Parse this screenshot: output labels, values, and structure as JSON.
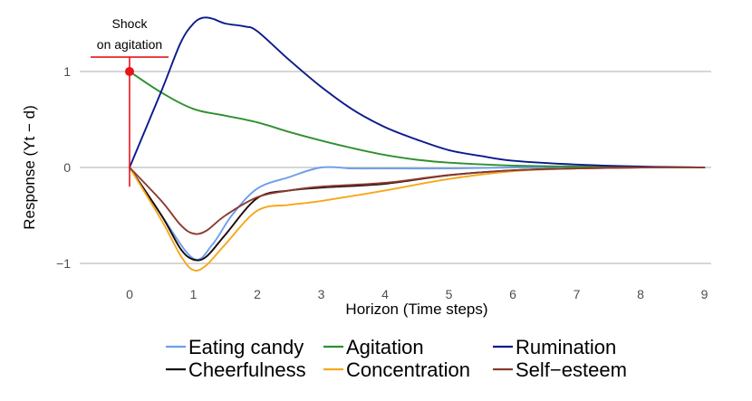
{
  "chart_data": {
    "type": "line",
    "title": "",
    "xlabel": "Horizon (Time steps)",
    "ylabel": "Response (Yt − d)",
    "x_ticks": [
      0,
      1,
      2,
      3,
      4,
      5,
      6,
      7,
      8,
      9
    ],
    "y_ticks": [
      -1,
      0,
      1
    ],
    "y_tick_labels": [
      "−1",
      "0",
      "1"
    ],
    "xlim": [
      -0.75,
      9.2
    ],
    "ylim": [
      -1.2,
      1.6
    ],
    "grid": "horizontal major lines",
    "legend_position": "bottom",
    "annotation": {
      "lines": [
        "Shock",
        "on agitation"
      ],
      "x": 0,
      "y": 1,
      "whisker_low": -0.2,
      "whisker_high": 1.15,
      "color": "#e8141a"
    },
    "series": [
      {
        "name": "Eating candy",
        "color": "#6d9eeb",
        "x": [
          0,
          0.5,
          1,
          1.3,
          1.6,
          2,
          2.5,
          3,
          3.5,
          4,
          5,
          6,
          7,
          8,
          9
        ],
        "values": [
          0,
          -0.5,
          -0.95,
          -0.8,
          -0.5,
          -0.22,
          -0.1,
          0.0,
          -0.01,
          -0.01,
          -0.01,
          0,
          0,
          0,
          0
        ]
      },
      {
        "name": "Agitation",
        "color": "#2f8f2f",
        "x": [
          0,
          0.5,
          1,
          1.5,
          2,
          2.5,
          3,
          3.5,
          4,
          4.5,
          5,
          6,
          7,
          8,
          9
        ],
        "values": [
          1.0,
          0.78,
          0.61,
          0.54,
          0.47,
          0.37,
          0.28,
          0.2,
          0.13,
          0.08,
          0.05,
          0.02,
          0.01,
          0.005,
          0
        ]
      },
      {
        "name": "Rumination",
        "color": "#0a1a8c",
        "x": [
          0,
          0.5,
          0.8,
          1,
          1.15,
          1.3,
          1.5,
          1.8,
          2,
          2.5,
          3,
          3.5,
          4,
          4.5,
          5,
          5.5,
          6,
          7,
          8,
          9
        ],
        "values": [
          0,
          0.8,
          1.3,
          1.5,
          1.56,
          1.55,
          1.5,
          1.47,
          1.42,
          1.12,
          0.84,
          0.6,
          0.42,
          0.29,
          0.18,
          0.12,
          0.07,
          0.03,
          0.01,
          0
        ]
      },
      {
        "name": "Cheerfulness",
        "color": "#1a0a0a",
        "x": [
          0,
          0.5,
          0.8,
          1,
          1.2,
          1.5,
          2,
          2.5,
          3,
          4,
          5,
          6,
          7,
          8,
          9
        ],
        "values": [
          0,
          -0.5,
          -0.85,
          -0.96,
          -0.93,
          -0.7,
          -0.32,
          -0.24,
          -0.21,
          -0.17,
          -0.08,
          -0.03,
          -0.01,
          0,
          0
        ]
      },
      {
        "name": "Concentration",
        "color": "#f5a81c",
        "x": [
          0,
          0.5,
          0.8,
          1,
          1.2,
          1.5,
          2,
          2.5,
          3,
          4,
          5,
          6,
          7,
          8,
          9
        ],
        "values": [
          0,
          -0.55,
          -0.92,
          -1.07,
          -1.02,
          -0.8,
          -0.45,
          -0.39,
          -0.35,
          -0.24,
          -0.12,
          -0.04,
          -0.01,
          0,
          0
        ]
      },
      {
        "name": "Self−esteem",
        "color": "#8b3a2f",
        "x": [
          0,
          0.5,
          0.8,
          1,
          1.2,
          1.5,
          2,
          2.5,
          3,
          4,
          5,
          6,
          7,
          8,
          9
        ],
        "values": [
          0,
          -0.35,
          -0.6,
          -0.69,
          -0.66,
          -0.5,
          -0.31,
          -0.24,
          -0.2,
          -0.16,
          -0.08,
          -0.03,
          -0.01,
          0,
          0
        ]
      }
    ]
  }
}
